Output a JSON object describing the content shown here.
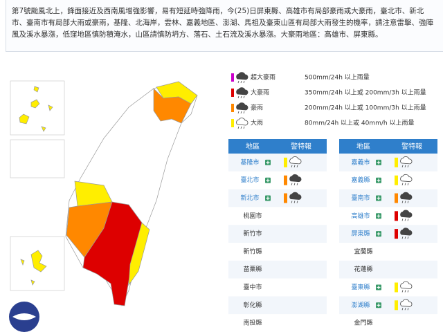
{
  "description": "第7號颱風北上，鋒面接近及西南風增強影響，易有短延時強降雨，今(25)日屏東縣、高雄市有局部豪雨或大豪雨，臺北市、新北市、臺南市有局部大雨或豪雨，基隆、北海岸，雲林、嘉義地區、澎湖、馬祖及臺東山區有局部大雨發生的機率，請注意雷擊、強陣風及溪水暴漲，低窪地區慎防積淹水，山區請慎防坍方、落石、土石流及溪水暴漲。大豪雨地區：高雄市、屏東縣。",
  "legend": [
    {
      "label": "超大豪雨",
      "criteria": "500mm/24h 以上雨量",
      "color": "#cc00cc"
    },
    {
      "label": "大豪雨",
      "criteria": "350mm/24h 以上或 200mm/3h 以上雨量",
      "color": "#dd0000"
    },
    {
      "label": "豪雨",
      "criteria": "200mm/24h 以上或 100mm/3h 以上雨量",
      "color": "#ff8800"
    },
    {
      "label": "大雨",
      "criteria": "80mm/24h 以上或 40mm/h 以上雨量",
      "color": "#ffee00"
    }
  ],
  "tables": [
    {
      "headers": [
        "地區",
        "警特報"
      ],
      "rows": [
        {
          "region": "基隆市",
          "color": "#ffee00"
        },
        {
          "region": "臺北市",
          "color": "#ff8800"
        },
        {
          "region": "新北市",
          "color": "#ff8800"
        },
        {
          "region": "桃園市",
          "color": null
        },
        {
          "region": "新竹市",
          "color": null
        },
        {
          "region": "新竹縣",
          "color": null
        },
        {
          "region": "苗栗縣",
          "color": null
        },
        {
          "region": "臺中市",
          "color": null
        },
        {
          "region": "彰化縣",
          "color": null
        },
        {
          "region": "南投縣",
          "color": null
        }
      ]
    },
    {
      "headers": [
        "地區",
        "警特報"
      ],
      "rows": [
        {
          "region": "嘉義市",
          "color": "#ffee00"
        },
        {
          "region": "嘉義縣",
          "color": "#ffee00"
        },
        {
          "region": "臺南市",
          "color": "#ff8800"
        },
        {
          "region": "高雄市",
          "color": "#dd0000"
        },
        {
          "region": "屏東縣",
          "color": "#dd0000"
        },
        {
          "region": "宜蘭縣",
          "color": null
        },
        {
          "region": "花蓮縣",
          "color": null
        },
        {
          "region": "臺東縣",
          "color": "#ffee00"
        },
        {
          "region": "澎湖縣",
          "color": "#ffee00"
        },
        {
          "region": "金門縣",
          "color": null
        }
      ]
    }
  ]
}
